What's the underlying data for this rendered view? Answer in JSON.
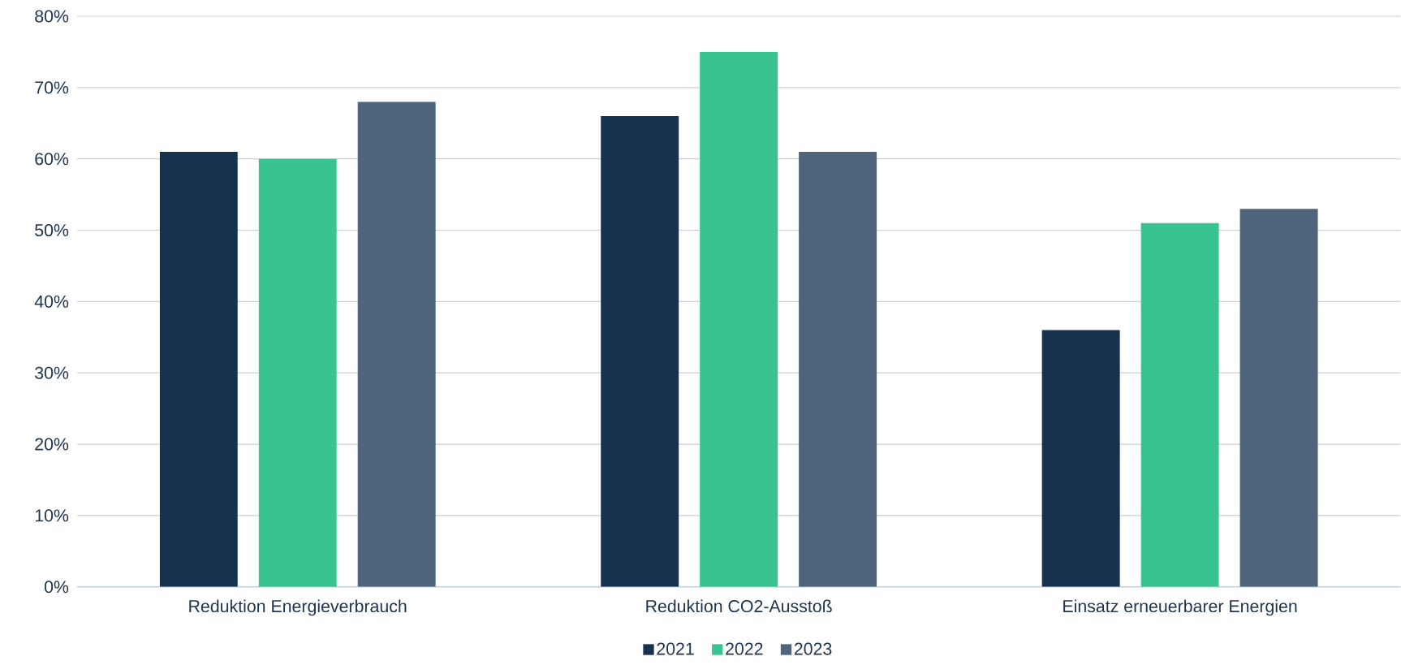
{
  "chart_data": {
    "type": "bar",
    "categories": [
      "Reduktion Energieverbrauch",
      "Reduktion CO2-Ausstoß",
      "Einsatz erneuerbarer Energien"
    ],
    "series": [
      {
        "name": "2021",
        "color": "#16324f",
        "values": [
          61,
          66,
          36
        ]
      },
      {
        "name": "2022",
        "color": "#38c390",
        "values": [
          60,
          75,
          51
        ]
      },
      {
        "name": "2023",
        "color": "#4f657c",
        "values": [
          68,
          61,
          53
        ]
      }
    ],
    "ylim": [
      0,
      80
    ],
    "yticks": [
      {
        "value": 0,
        "label": "0%"
      },
      {
        "value": 10,
        "label": "10%"
      },
      {
        "value": 20,
        "label": "20%"
      },
      {
        "value": 30,
        "label": "30%"
      },
      {
        "value": 40,
        "label": "40%"
      },
      {
        "value": 50,
        "label": "50%"
      },
      {
        "value": 60,
        "label": "60%"
      },
      {
        "value": 70,
        "label": "70%"
      },
      {
        "value": 80,
        "label": "80%"
      }
    ],
    "grid": "y",
    "legend": "bottom"
  }
}
